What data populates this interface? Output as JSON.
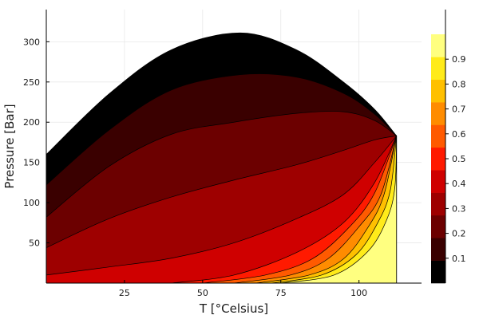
{
  "chart_data": {
    "type": "area",
    "title": "",
    "xlabel": "T [°Celsius]",
    "ylabel": "Pressure [Bar]",
    "xlim": [
      0,
      120
    ],
    "ylim": [
      0,
      340
    ],
    "x_ticks": [
      25,
      50,
      75,
      100
    ],
    "y_ticks": [
      50,
      100,
      150,
      200,
      250,
      300
    ],
    "grid": true,
    "critical_point": {
      "x": 112,
      "y": 183
    },
    "boundaries": [
      {
        "level": 0.0,
        "points": [
          [
            0,
            160
          ],
          [
            20,
            235
          ],
          [
            40,
            290
          ],
          [
            62,
            311
          ],
          [
            80,
            290
          ],
          [
            95,
            250
          ],
          [
            105,
            216
          ],
          [
            112,
            183
          ]
        ]
      },
      {
        "level": 0.1,
        "points": [
          [
            0,
            122
          ],
          [
            20,
            190
          ],
          [
            40,
            240
          ],
          [
            62,
            259
          ],
          [
            80,
            256
          ],
          [
            95,
            236
          ],
          [
            105,
            210
          ],
          [
            112,
            183
          ]
        ]
      },
      {
        "level": 0.2,
        "points": [
          [
            0,
            82
          ],
          [
            20,
            145
          ],
          [
            40,
            185
          ],
          [
            60,
            200
          ],
          [
            80,
            211
          ],
          [
            95,
            213
          ],
          [
            105,
            202
          ],
          [
            112,
            183
          ]
        ]
      },
      {
        "level": 0.3,
        "points": [
          [
            0,
            44
          ],
          [
            20,
            80
          ],
          [
            40,
            107
          ],
          [
            60,
            128
          ],
          [
            80,
            147
          ],
          [
            95,
            165
          ],
          [
            105,
            178
          ],
          [
            112,
            183
          ]
        ]
      },
      {
        "level": 0.4,
        "points": [
          [
            0,
            10
          ],
          [
            20,
            20
          ],
          [
            40,
            31
          ],
          [
            60,
            50
          ],
          [
            80,
            80
          ],
          [
            95,
            110
          ],
          [
            105,
            150
          ],
          [
            112,
            183
          ]
        ]
      },
      {
        "level": 0.5,
        "points": [
          [
            40,
            0
          ],
          [
            60,
            10
          ],
          [
            80,
            38
          ],
          [
            95,
            75
          ],
          [
            105,
            125
          ],
          [
            112,
            183
          ]
        ]
      },
      {
        "level": 0.6,
        "points": [
          [
            50,
            0
          ],
          [
            70,
            10
          ],
          [
            85,
            30
          ],
          [
            97,
            70
          ],
          [
            105,
            112
          ],
          [
            112,
            183
          ]
        ]
      },
      {
        "level": 0.7,
        "points": [
          [
            60,
            0
          ],
          [
            78,
            10
          ],
          [
            90,
            30
          ],
          [
            100,
            70
          ],
          [
            107,
            110
          ],
          [
            112,
            183
          ]
        ]
      },
      {
        "level": 0.8,
        "points": [
          [
            67,
            0
          ],
          [
            84,
            10
          ],
          [
            95,
            30
          ],
          [
            103,
            70
          ],
          [
            108,
            110
          ],
          [
            112,
            183
          ]
        ]
      },
      {
        "level": 0.9,
        "points": [
          [
            72,
            0
          ],
          [
            88,
            10
          ],
          [
            99,
            35
          ],
          [
            106,
            75
          ],
          [
            110,
            115
          ],
          [
            112,
            183
          ]
        ]
      },
      {
        "level": 1.0,
        "points": [
          [
            75,
            0
          ],
          [
            92,
            10
          ],
          [
            103,
            40
          ],
          [
            109,
            80
          ],
          [
            111.5,
            120
          ],
          [
            112,
            183
          ]
        ]
      }
    ],
    "colorbar": {
      "min": 0,
      "max": 1.0,
      "ticks": [
        "0.1",
        "0.2",
        "0.3",
        "0.4",
        "0.5",
        "0.6",
        "0.7",
        "0.8",
        "0.9"
      ],
      "colors": [
        "#000000",
        "#3a0000",
        "#6c0000",
        "#9e0000",
        "#cf0000",
        "#ff1a00",
        "#ff5a00",
        "#ff8c00",
        "#ffc000",
        "#ffeb1a",
        "#ffff80"
      ]
    }
  }
}
